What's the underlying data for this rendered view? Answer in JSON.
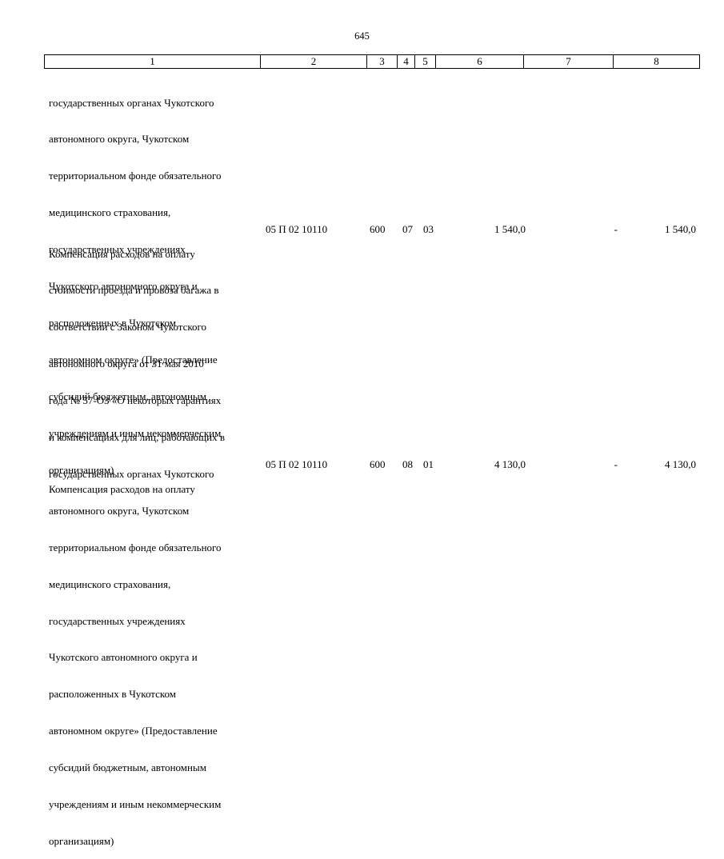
{
  "page_number": "645",
  "header": [
    "1",
    "2",
    "3",
    "4",
    "5",
    "6",
    "7",
    "8"
  ],
  "continuation_lines": [
    "государственных органах Чукотского",
    "автономного округа, Чукотском",
    "территориальном фонде обязательного",
    "медицинского страхования,",
    "государственных учреждениях",
    "Чукотского автономного округа и",
    "расположенных в Чукотском",
    "автономном округе» (Предоставление",
    "субсидий бюджетным, автономным",
    "учреждениям и иным некоммерческим",
    "организациям)"
  ],
  "rows": [
    {
      "name_lines": [
        "Компенсация расходов на оплату",
        "стоимости проезда и провоза багажа в",
        "соответствии с Законом Чукотского",
        "автономного округа от 31 мая 2010",
        "года № 57-ОЗ «О некоторых гарантиях",
        "и компенсациях для лиц, работающих в",
        "государственных органах Чукотского",
        "автономного округа, Чукотском",
        "территориальном фонде обязательного",
        "медицинского страхования,",
        "государственных учреждениях",
        "Чукотского автономного округа и",
        "расположенных в Чукотском",
        "автономном округе» (Предоставление",
        "субсидий бюджетным, автономным",
        "учреждениям и иным некоммерческим",
        "организациям)"
      ],
      "code": "05 П 02 10110",
      "vr": "600",
      "rz": "07",
      "pr": "03",
      "c6": "1 540,0",
      "c7": "-",
      "c8": "1 540,0"
    },
    {
      "name_lines": [
        "Компенсация расходов на оплату"
      ],
      "code": "05 П 02 10110",
      "vr": "600",
      "rz": "08",
      "pr": "01",
      "c6": "4 130,0",
      "c7": "-",
      "c8": "4 130,0"
    }
  ]
}
